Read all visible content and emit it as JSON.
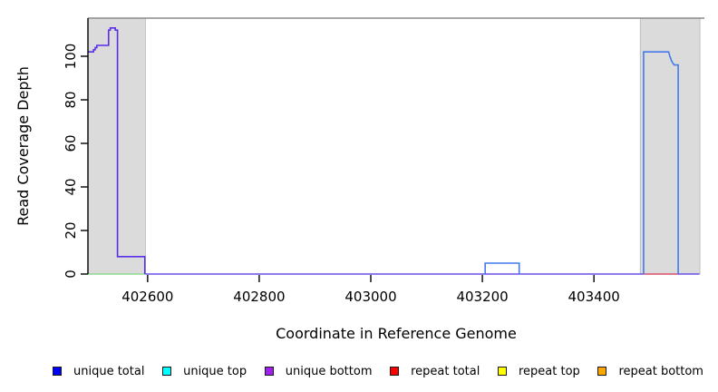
{
  "chart_data": {
    "type": "line",
    "title": "",
    "xlabel": "Coordinate in Reference Genome",
    "ylabel": "Read Coverage Depth",
    "x_range": [
      402493,
      403598
    ],
    "y_range": [
      0,
      117.5
    ],
    "x_ticks": [
      402600,
      402800,
      403000,
      403200,
      403400
    ],
    "y_ticks": [
      0,
      20,
      40,
      60,
      80,
      100
    ],
    "grid": false,
    "legend_position": "bottom",
    "colors": {
      "flank_fill": "#DBDBDB",
      "flank_border": "#B5B5B5",
      "top_border": "#8C8C8C",
      "axis": "#000000",
      "text": "#000000",
      "background": "#FFFFFF"
    },
    "shaded_regions": [
      {
        "name": "left-flank",
        "x1": 402493,
        "x2": 402596
      },
      {
        "name": "right-flank",
        "x1": 403483,
        "x2": 403590
      }
    ],
    "series": [
      {
        "id": "zero-baseline",
        "name": "unique total zero-coverage baseline",
        "color": "#6A4FEF",
        "segments": [
          [
            [
              402596,
              0
            ],
            [
              403589,
              0
            ]
          ]
        ]
      },
      {
        "id": "left-flank-zero-line-green",
        "name": "green zero line under left flank",
        "color": "#8FD98F",
        "segments": [
          [
            [
              402493,
              0
            ],
            [
              402596,
              0
            ]
          ]
        ]
      },
      {
        "id": "unique-coverage-left-flank",
        "name": "unique total coverage, left flank peak",
        "color": "#5A2FE8",
        "segments": [
          [
            [
              402493,
              102
            ],
            [
              402503,
              102
            ],
            [
              402503,
              103
            ],
            [
              402506,
              103
            ],
            [
              402506,
              104
            ],
            [
              402509,
              104
            ],
            [
              402509,
              105
            ],
            [
              402530,
              105
            ],
            [
              402530,
              112
            ],
            [
              402533,
              112
            ],
            [
              402533,
              113
            ],
            [
              402542,
              113
            ],
            [
              402542,
              112
            ],
            [
              402546,
              112
            ],
            [
              402546,
              8
            ],
            [
              402595,
              8
            ],
            [
              402595,
              0
            ]
          ]
        ]
      },
      {
        "id": "repeat-zero-line-right-flank",
        "name": "red zero line under right flank",
        "color": "#EE6A6A",
        "segments": [
          [
            [
              403489,
              0
            ],
            [
              403551,
              0
            ]
          ]
        ]
      },
      {
        "id": "unique-coverage-right",
        "name": "unique total coverage, mid bump and right flank block",
        "color": "#4479EC",
        "segments": [
          [
            [
              403205,
              0
            ],
            [
              403205,
              5
            ],
            [
              403266,
              5
            ],
            [
              403266,
              0
            ]
          ],
          [
            [
              403489,
              0
            ],
            [
              403489,
              102
            ],
            [
              403534,
              102
            ],
            [
              403536,
              100
            ],
            [
              403539,
              98
            ],
            [
              403541,
              97
            ],
            [
              403544,
              96
            ],
            [
              403551,
              96
            ],
            [
              403551,
              0
            ]
          ]
        ]
      }
    ],
    "legend": [
      {
        "label": "unique total",
        "color": "#0000FF"
      },
      {
        "label": "unique top",
        "color": "#00FFFF"
      },
      {
        "label": "unique bottom",
        "color": "#A020F0"
      },
      {
        "label": "repeat total",
        "color": "#FF0000"
      },
      {
        "label": "repeat top",
        "color": "#FFFF00"
      },
      {
        "label": "repeat bottom",
        "color": "#FFA500"
      }
    ]
  }
}
